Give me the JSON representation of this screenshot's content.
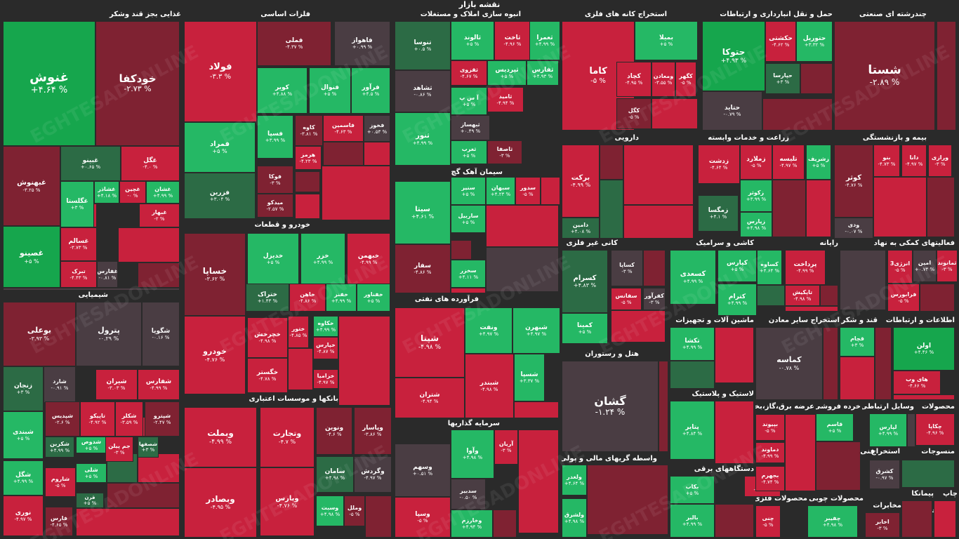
{
  "title": "نقشه بازار",
  "watermark": "EGHTESADONLINE",
  "colors": {
    "strong_green": "#16a64d",
    "green": "#25b865",
    "dark_green": "#2c6b45",
    "neutral": "#4a3d43",
    "dark_red": "#7f2232",
    "red": "#c8213d",
    "strong_red": "#dd2345"
  },
  "sectors": [
    {
      "name": "غذایی بجز قند وشکر"
    },
    {
      "name": "فلزات اساسی"
    },
    {
      "name": "انبوه سازی املاک و مستغلات"
    },
    {
      "name": "استخراج کانه های فلزی"
    },
    {
      "name": "حمل و نقل انبارداری و ارتباطات"
    },
    {
      "name": "چندرشته ای صنعتی"
    },
    {
      "name": "شیمیایی"
    },
    {
      "name": "خودرو و قطعات"
    },
    {
      "name": "سیمان آهک گچ"
    },
    {
      "name": "دارویی"
    },
    {
      "name": "زراعت و خدمات وابسته"
    },
    {
      "name": "بیمه و بازنشستگی"
    },
    {
      "name": "کانی غیر فلزی"
    },
    {
      "name": "کاشی و سرامیک"
    },
    {
      "name": "رایانه"
    },
    {
      "name": "فعالیتهای کمکی به نهاد"
    },
    {
      "name": "فرآورده های نفتی"
    },
    {
      "name": "ماشین آلات و تجهیزات"
    },
    {
      "name": "استخراج سایر معادن"
    },
    {
      "name": "قند و شکر"
    },
    {
      "name": "اطلاعات و ارتباطات"
    },
    {
      "name": "هتل و رستوران"
    },
    {
      "name": "بانکها و موسسات اعتباری"
    },
    {
      "name": "لاستیک و پلاستیک"
    },
    {
      "name": "سرمایه گذاریها"
    },
    {
      "name": "واسطه گریهای مالی و پولی"
    },
    {
      "name": "دستگاههای برقی"
    },
    {
      "name": "عرضه برق،گاز،بخار"
    },
    {
      "name": "خرده فروشی"
    },
    {
      "name": "وسایل ارتباطی"
    },
    {
      "name": "محصولات"
    },
    {
      "name": "فنی و مهندسی"
    },
    {
      "name": "استخراج"
    },
    {
      "name": "منسوجات"
    },
    {
      "name": "محصولات فلزی"
    },
    {
      "name": "محصولات چوبی"
    },
    {
      "name": "مخابرات"
    },
    {
      "name": "چاپ"
    },
    {
      "name": "پیمانکا"
    },
    {
      "name": "سایر فعالی"
    }
  ],
  "chart_data": {
    "type": "heatmap",
    "title": "نقشه بازار",
    "unit": "%",
    "tiles": [
      {
        "symbol": "غنوش",
        "change": "+۴.۶۴ %",
        "level": "strong_green"
      },
      {
        "symbol": "خودکفا",
        "change": "-۲.۷۳ %",
        "level": "dark_red"
      },
      {
        "symbol": "غبهنوش",
        "change": "-۳.۲۵ %",
        "level": "dark_red"
      },
      {
        "symbol": "غبینو",
        "change": "+۰.۶۵ %",
        "level": "dark_green"
      },
      {
        "symbol": "غگل",
        "change": "-۴.۰ %",
        "level": "red"
      },
      {
        "symbol": "غگلستا",
        "change": "+۳ %",
        "level": "green"
      },
      {
        "symbol": "غشاذر",
        "change": "+۴.۱۸ %",
        "level": "green"
      },
      {
        "symbol": "غچین",
        "change": "-۰ %",
        "level": "red"
      },
      {
        "symbol": "غشان",
        "change": "+۴.۹۹ %",
        "level": "green"
      },
      {
        "symbol": "غبهار",
        "change": "-۲ %",
        "level": "red"
      },
      {
        "symbol": "غسالم",
        "change": "-۳.۷۳ %",
        "level": "red"
      },
      {
        "symbol": "غصینو",
        "change": "+۵ %",
        "level": "strong_green"
      },
      {
        "symbol": "تبرک",
        "change": "-۴.۴۳ %",
        "level": "red"
      },
      {
        "symbol": "غفارس",
        "change": "-۰.۸۱ %",
        "level": "neutral"
      },
      {
        "symbol": "فولاد",
        "change": "-۳.۳ %",
        "level": "red"
      },
      {
        "symbol": "فملی",
        "change": "-۴.۳۷ %",
        "level": "dark_red"
      },
      {
        "symbol": "فاهواز",
        "change": "+۰.۹۹ %",
        "level": "neutral"
      },
      {
        "symbol": "کویر",
        "change": "+۴.۸۸ %",
        "level": "green"
      },
      {
        "symbol": "فنوال",
        "change": "+۵ %",
        "level": "green"
      },
      {
        "symbol": "فرآور",
        "change": "+۴.۵ %",
        "level": "green"
      },
      {
        "symbol": "فمراد",
        "change": "+۵ %",
        "level": "green"
      },
      {
        "symbol": "فسپا",
        "change": "+۳.۹۹ %",
        "level": "green"
      },
      {
        "symbol": "کاوه",
        "change": "-۳.۸۱ %",
        "level": "dark_red"
      },
      {
        "symbol": "فاسمین",
        "change": "-۴.۶۳ %",
        "level": "red"
      },
      {
        "symbol": "فخوز",
        "change": "+۰.۵۳ %",
        "level": "neutral"
      },
      {
        "symbol": "هرمز",
        "change": "-۴.۲۳ %",
        "level": "red"
      },
      {
        "symbol": "فزرین",
        "change": "+۳.۰۴ %",
        "level": "dark_green"
      },
      {
        "symbol": "فوکا",
        "change": "-۳ %",
        "level": "dark_red"
      },
      {
        "symbol": "میدکو",
        "change": "-۲.۵۷ %",
        "level": "dark_red"
      },
      {
        "symbol": "تنوسا",
        "change": "+۰.۵ %",
        "level": "dark_green"
      },
      {
        "symbol": "ثالوند",
        "change": "+۵ %",
        "level": "green"
      },
      {
        "symbol": "ثاخت",
        "change": "-۴.۹۶ %",
        "level": "red"
      },
      {
        "symbol": "ثعمرا",
        "change": "+۴.۹۹ %",
        "level": "green"
      },
      {
        "symbol": "ثقزوی",
        "change": "-۴.۶۷ %",
        "level": "red"
      },
      {
        "symbol": "ثپردیس",
        "change": "+۵ %",
        "level": "green"
      },
      {
        "symbol": "ثفارس",
        "change": "+۴.۹۳ %",
        "level": "green"
      },
      {
        "symbol": "ثشاهد",
        "change": "-۰.۸۶ %",
        "level": "neutral"
      },
      {
        "symbol": "آ س پ",
        "change": "+۵ %",
        "level": "green"
      },
      {
        "symbol": "ثامید",
        "change": "-۴.۹۴ %",
        "level": "red"
      },
      {
        "symbol": "ثبهساز",
        "change": "+۰.۴۹ %",
        "level": "neutral"
      },
      {
        "symbol": "ثنور",
        "change": "+۴.۹۹ %",
        "level": "green"
      },
      {
        "symbol": "ثغرب",
        "change": "+۵ %",
        "level": "green"
      },
      {
        "symbol": "ثاصفا",
        "change": "-۳ %",
        "level": "dark_red"
      },
      {
        "symbol": "کاما",
        "change": "-۵ %",
        "level": "red"
      },
      {
        "symbol": "بمیلا",
        "change": "+۵ %",
        "level": "green"
      },
      {
        "symbol": "کچاد",
        "change": "-۴.۹۵ %",
        "level": "red"
      },
      {
        "symbol": "ومعادن",
        "change": "-۳.۵۵ %",
        "level": "red"
      },
      {
        "symbol": "کگهر",
        "change": "-۵ %",
        "level": "red"
      },
      {
        "symbol": "کگل",
        "change": "-۵ %",
        "level": "dark_red"
      },
      {
        "symbol": "حتوکا",
        "change": "+۴.۹۳ %",
        "level": "strong_green"
      },
      {
        "symbol": "حکشتی",
        "change": "-۴.۶۲ %",
        "level": "red"
      },
      {
        "symbol": "حتوریل",
        "change": "+۳.۳۲ %",
        "level": "green"
      },
      {
        "symbol": "حپارسا",
        "change": "+۳ %",
        "level": "dark_green"
      },
      {
        "symbol": "حتاید",
        "change": "-۰.۷۹ %",
        "level": "neutral"
      },
      {
        "symbol": "شستا",
        "change": "-۲.۸۹ %",
        "level": "dark_red"
      },
      {
        "symbol": "بوعلی",
        "change": "-۳.۹۳ %",
        "level": "dark_red"
      },
      {
        "symbol": "پترول",
        "change": "-۰.۲۹ %",
        "level": "neutral"
      },
      {
        "symbol": "شگویا",
        "change": "-۰.۱۶ %",
        "level": "neutral"
      },
      {
        "symbol": "زنجان",
        "change": "+۳ %",
        "level": "dark_green"
      },
      {
        "symbol": "شارد",
        "change": "-۰.۹۱ %",
        "level": "neutral"
      },
      {
        "symbol": "شیران",
        "change": "-۳.۰۳ %",
        "level": "red"
      },
      {
        "symbol": "شفارس",
        "change": "-۴.۹۹ %",
        "level": "red"
      },
      {
        "symbol": "شبندی",
        "change": "+۵ %",
        "level": "green"
      },
      {
        "symbol": "شپدیس",
        "change": "-۲.۶ %",
        "level": "dark_red"
      },
      {
        "symbol": "تاپیکو",
        "change": "-۴.۹۲ %",
        "level": "red"
      },
      {
        "symbol": "شکلر",
        "change": "-۳.۵۹ %",
        "level": "red"
      },
      {
        "symbol": "شپترو",
        "change": "-۲.۴۷ %",
        "level": "dark_red"
      },
      {
        "symbol": "شکربن",
        "change": "+۴.۹۹ %",
        "level": "dark_green"
      },
      {
        "symbol": "شدوص",
        "change": "+۵ %",
        "level": "green"
      },
      {
        "symbol": "جم پیلن",
        "change": "-۳ %",
        "level": "red"
      },
      {
        "symbol": "شصفها",
        "change": "+۳ %",
        "level": "dark_green"
      },
      {
        "symbol": "شگل",
        "change": "+۴.۹۹ %",
        "level": "green"
      },
      {
        "symbol": "شاروم",
        "change": "-۵ %",
        "level": "red"
      },
      {
        "symbol": "شلی",
        "change": "+۵ %",
        "level": "green"
      },
      {
        "symbol": "قرن",
        "change": "+۵ %",
        "level": "dark_green"
      },
      {
        "symbol": "نوری",
        "change": "-۴.۹۷ %",
        "level": "red"
      },
      {
        "symbol": "فارس",
        "change": "-۴.۶۵ %",
        "level": "dark_red"
      },
      {
        "symbol": "خساپا",
        "change": "-۳.۶۲ %",
        "level": "dark_red"
      },
      {
        "symbol": "خدیزل",
        "change": "+۵ %",
        "level": "green"
      },
      {
        "symbol": "خزر",
        "change": "+۴.۹۹ %",
        "level": "green"
      },
      {
        "symbol": "خبهمن",
        "change": "-۴.۹۹ %",
        "level": "red"
      },
      {
        "symbol": "ختراک",
        "change": "+۱.۴۳ %",
        "level": "dark_green"
      },
      {
        "symbol": "خاهن",
        "change": "-۴.۸۶ %",
        "level": "red"
      },
      {
        "symbol": "خفنر",
        "change": "+۴.۹۹ %",
        "level": "green"
      },
      {
        "symbol": "خفناور",
        "change": "+۵ %",
        "level": "green"
      },
      {
        "symbol": "خودرو",
        "change": "-۴.۷۶ %",
        "level": "red"
      },
      {
        "symbol": "خچرخش",
        "change": "-۴.۹۸ %",
        "level": "red"
      },
      {
        "symbol": "ختور",
        "change": "-۴.۸۵ %",
        "level": "red"
      },
      {
        "symbol": "خکاوه",
        "change": "+۴.۹۹ %",
        "level": "green"
      },
      {
        "symbol": "خپارس",
        "change": "-۴.۸۷ %",
        "level": "red"
      },
      {
        "symbol": "خگستر",
        "change": "-۴.۷۸ %",
        "level": "red"
      },
      {
        "symbol": "خزامیا",
        "change": "-۴.۹۷ %",
        "level": "red"
      },
      {
        "symbol": "سیتا",
        "change": "+۴.۶۱ %",
        "level": "green"
      },
      {
        "symbol": "ساربیل",
        "change": "+۵ %",
        "level": "green"
      },
      {
        "symbol": "سفار",
        "change": "-۴.۸۶ %",
        "level": "dark_red"
      },
      {
        "symbol": "سخزر",
        "change": "+۴.۱۱ %",
        "level": "green"
      },
      {
        "symbol": "سنیر",
        "change": "+۵ %",
        "level": "green"
      },
      {
        "symbol": "سبهان",
        "change": "+۴.۲۳ %",
        "level": "green"
      },
      {
        "symbol": "سدور",
        "change": "-۵ %",
        "level": "red"
      },
      {
        "symbol": "شپنا",
        "change": "-۴.۹۸ %",
        "level": "red"
      },
      {
        "symbol": "ونفت",
        "change": "+۴.۹۷ %",
        "level": "green"
      },
      {
        "symbol": "شبهرن",
        "change": "+۴.۹۷ %",
        "level": "green"
      },
      {
        "symbol": "شتران",
        "change": "-۴.۹۴ %",
        "level": "red"
      },
      {
        "symbol": "شبندر",
        "change": "-۴.۹۸ %",
        "level": "red"
      },
      {
        "symbol": "شسپا",
        "change": "+۳.۳۷ %",
        "level": "green"
      },
      {
        "symbol": "وبملت",
        "change": "-۴.۹۹ %",
        "level": "red"
      },
      {
        "symbol": "وتجارت",
        "change": "-۴.۷ %",
        "level": "red"
      },
      {
        "symbol": "ونوین",
        "change": "-۴.۶ %",
        "level": "dark_red"
      },
      {
        "symbol": "وپاسار",
        "change": "-۳.۸۶ %",
        "level": "dark_red"
      },
      {
        "symbol": "وبصادر",
        "change": "-۴.۹۵ %",
        "level": "red"
      },
      {
        "symbol": "وپارس",
        "change": "-۴.۷۶ %",
        "level": "red"
      },
      {
        "symbol": "سامان",
        "change": "+۴.۹۸ %",
        "level": "dark_green"
      },
      {
        "symbol": "وگردش",
        "change": "-۴.۹۷ %",
        "level": "neutral"
      },
      {
        "symbol": "وسبت",
        "change": "+۴.۹۸ %",
        "level": "green"
      },
      {
        "symbol": "وملل",
        "change": "-۵ %",
        "level": "dark_red"
      },
      {
        "symbol": "وآوا",
        "change": "+۴.۹۸ %",
        "level": "green"
      },
      {
        "symbol": "آریان",
        "change": "-۳ %",
        "level": "red"
      },
      {
        "symbol": "وسهم",
        "change": "+۰.۵۱ %",
        "level": "neutral"
      },
      {
        "symbol": "سدبیر",
        "change": "-۰.۵۰ %",
        "level": "neutral"
      },
      {
        "symbol": "وسپا",
        "change": "-۵ %",
        "level": "red"
      },
      {
        "symbol": "وخارزم",
        "change": "+۴.۹۴ %",
        "level": "green"
      },
      {
        "symbol": "برکت",
        "change": "-۴.۹۹ %",
        "level": "red"
      },
      {
        "symbol": "دامین",
        "change": "+۴.۰۸ %",
        "level": "dark_green"
      },
      {
        "symbol": "زدشت",
        "change": "-۴.۶۴ %",
        "level": "red"
      },
      {
        "symbol": "زملارد",
        "change": "-۵ %",
        "level": "red"
      },
      {
        "symbol": "تلیسه",
        "change": "-۴.۹۷ %",
        "level": "red"
      },
      {
        "symbol": "زشریف",
        "change": "+۵ %",
        "level": "green"
      },
      {
        "symbol": "زکوثر",
        "change": "+۳.۹۹ %",
        "level": "green"
      },
      {
        "symbol": "زمگسا",
        "change": "+۴.۱ %",
        "level": "dark_green"
      },
      {
        "symbol": "زپارس",
        "change": "+۴.۹۸ %",
        "level": "green"
      },
      {
        "symbol": "کوثر",
        "change": "-۴.۷۶ %",
        "level": "dark_red"
      },
      {
        "symbol": "بنو",
        "change": "-۴.۷۳ %",
        "level": "red"
      },
      {
        "symbol": "دانا",
        "change": "-۴.۹۷ %",
        "level": "red"
      },
      {
        "symbol": "ورازی",
        "change": "-۳ %",
        "level": "red"
      },
      {
        "symbol": "ودی",
        "change": "-۰.۰۷ %",
        "level": "neutral"
      },
      {
        "symbol": "کسرام",
        "change": "+۴.۸۳ %",
        "level": "dark_green"
      },
      {
        "symbol": "کساپا",
        "change": "-۳ %",
        "level": "neutral"
      },
      {
        "symbol": "سفانس",
        "change": "-۵ %",
        "level": "red"
      },
      {
        "symbol": "کفرآور",
        "change": "-۳ %",
        "level": "neutral"
      },
      {
        "symbol": "کمینا",
        "change": "+۵ %",
        "level": "green"
      },
      {
        "symbol": "کسعدی",
        "change": "+۴.۹۹ %",
        "level": "green"
      },
      {
        "symbol": "کپارس",
        "change": "+۵ %",
        "level": "green"
      },
      {
        "symbol": "کساوه",
        "change": "+۴.۶۴ %",
        "level": "green"
      },
      {
        "symbol": "کترام",
        "change": "+۴.۹۹ %",
        "level": "green"
      },
      {
        "symbol": "پرداخت",
        "change": "-۴.۹۹ %",
        "level": "red"
      },
      {
        "symbol": "تاپکیش",
        "change": "-۴.۹۸ %",
        "level": "red"
      },
      {
        "symbol": "انرژی3",
        "change": "-۵ %",
        "level": "red"
      },
      {
        "symbol": "امین",
        "change": "+۰.۷۴ %",
        "level": "neutral"
      },
      {
        "symbol": "ثمانوند",
        "change": "-۳ %",
        "level": "red"
      },
      {
        "symbol": "فرابورس",
        "change": "-۵ %",
        "level": "red"
      },
      {
        "symbol": "تکشا",
        "change": "+۴.۹۹ %",
        "level": "green"
      },
      {
        "symbol": "کماسه",
        "change": "-۰.۷۸ %",
        "level": "neutral"
      },
      {
        "symbol": "قچام",
        "change": "+۳ %",
        "level": "green"
      },
      {
        "symbol": "اولن",
        "change": "+۴.۴۶ %",
        "level": "strong_green"
      },
      {
        "symbol": "های وب",
        "change": "-۴.۶۶ %",
        "level": "red"
      },
      {
        "symbol": "گشان",
        "change": "-۱.۲۴ %",
        "level": "neutral"
      },
      {
        "symbol": "پتایر",
        "change": "+۴.۸۴ %",
        "level": "green"
      },
      {
        "symbol": "ولغدر",
        "change": "+۴.۶۴ %",
        "level": "green"
      },
      {
        "symbol": "ولشرق",
        "change": "+۴.۹۸ %",
        "level": "green"
      },
      {
        "symbol": "بکاب",
        "change": "+۵ %",
        "level": "green"
      },
      {
        "symbol": "بکام",
        "change": "-۴.۶۵ %",
        "level": "red"
      },
      {
        "symbol": "بالبر",
        "change": "+۴.۹۹ %",
        "level": "green"
      },
      {
        "symbol": "بپیوند",
        "change": "-۵ %",
        "level": "red"
      },
      {
        "symbol": "دماوند",
        "change": "-۴.۹۹ %",
        "level": "red"
      },
      {
        "symbol": "بجهرم",
        "change": "-۴.۷۴ %",
        "level": "red"
      },
      {
        "symbol": "قاسم",
        "change": "+۵ %",
        "level": "green"
      },
      {
        "symbol": "لپارس",
        "change": "+۴.۹۹ %",
        "level": "green"
      },
      {
        "symbol": "چکاپا",
        "change": "-۴.۹۶ %",
        "level": "red"
      },
      {
        "symbol": "کشرق",
        "change": "-۰.۹۷ %",
        "level": "neutral"
      },
      {
        "symbol": "چنی",
        "change": "-۵ %",
        "level": "red"
      },
      {
        "symbol": "چفیبر",
        "change": "+۴.۹۸ %",
        "level": "green"
      },
      {
        "symbol": "اخابر",
        "change": "-۳ %",
        "level": "dark_red"
      }
    ]
  }
}
